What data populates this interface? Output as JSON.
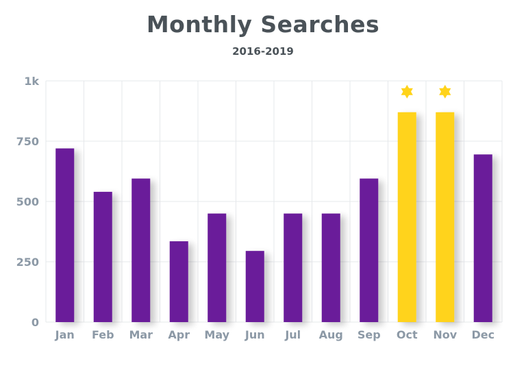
{
  "chart_data": {
    "type": "bar",
    "title": "Monthly Searches",
    "subtitle": "2016-2019",
    "xlabel": "",
    "ylabel": "",
    "categories": [
      "Jan",
      "Feb",
      "Mar",
      "Apr",
      "May",
      "Jun",
      "Jul",
      "Aug",
      "Sep",
      "Oct",
      "Nov",
      "Dec"
    ],
    "values": [
      720,
      540,
      595,
      335,
      450,
      295,
      450,
      450,
      595,
      870,
      870,
      695
    ],
    "highlighted": [
      false,
      false,
      false,
      false,
      false,
      false,
      false,
      false,
      false,
      true,
      true,
      false
    ],
    "ylim": [
      0,
      1000
    ],
    "yticks": [
      0,
      250,
      500,
      750,
      1000
    ],
    "ytick_labels": [
      "0",
      "250",
      "500",
      "750",
      "1k"
    ],
    "grid": true,
    "colors": {
      "bar": "#6a1b9a",
      "highlight": "#ffd31a",
      "star": "#ffd31a",
      "grid": "#e6e8eb",
      "text": "#4a5258",
      "tick": "#8c99a6"
    },
    "icons": {
      "highlight_marker": "star-icon"
    }
  }
}
